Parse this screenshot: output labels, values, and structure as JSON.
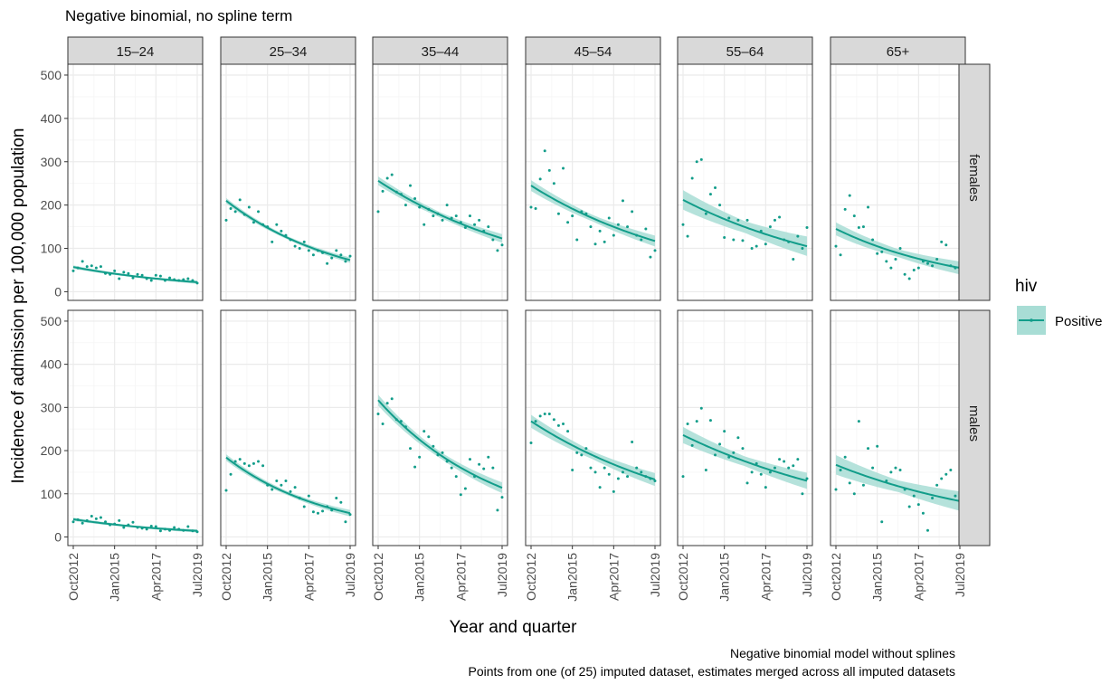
{
  "chart_data": {
    "type": "scatter",
    "title": "Negative binomial, no spline term",
    "xlabel": "Year and quarter",
    "ylabel": "Incidence of admission per 100,000 population",
    "caption": [
      "Negative binomial model without splines",
      "Points from one (of 25) imputed dataset, estimates merged across all imputed datasets"
    ],
    "x_quarters": [
      "Oct2012",
      "Jan2013",
      "Apr2013",
      "Jul2013",
      "Oct2013",
      "Jan2014",
      "Apr2014",
      "Jul2014",
      "Oct2014",
      "Jan2015",
      "Apr2015",
      "Jul2015",
      "Oct2015",
      "Jan2016",
      "Apr2016",
      "Jul2016",
      "Oct2016",
      "Jan2017",
      "Apr2017",
      "Jul2017",
      "Oct2017",
      "Jan2018",
      "Apr2018",
      "Jul2018",
      "Oct2018",
      "Jan2019",
      "Apr2019",
      "Jul2019"
    ],
    "x_ticks": [
      "Oct2012",
      "Jan2015",
      "Apr2017",
      "Jul2019"
    ],
    "y_ticks": [
      0,
      100,
      200,
      300,
      400,
      500
    ],
    "ylim": [
      -20,
      525
    ],
    "grid": true,
    "age_groups": [
      "15–24",
      "25–34",
      "35–44",
      "45–54",
      "55–64",
      "65+"
    ],
    "sexes": [
      "females",
      "males"
    ],
    "legend": {
      "title": "hiv",
      "label": "Positive",
      "position": "right"
    },
    "colors": {
      "line": "#129d8a",
      "ribbon": "#a8ddd5",
      "strip": "#d9d9d9",
      "grid_major": "#ebebeb",
      "grid_minor": "#f5f5f5"
    },
    "series": [
      {
        "sex": "females",
        "age": "15–24",
        "fit_start": 57,
        "fit_end": 22,
        "ci": 3,
        "points": [
          48,
          55,
          70,
          58,
          60,
          55,
          58,
          42,
          40,
          48,
          30,
          45,
          42,
          32,
          40,
          38,
          30,
          26,
          38,
          36,
          26,
          32,
          28,
          26,
          28,
          30,
          26,
          20
        ]
      },
      {
        "sex": "females",
        "age": "25–34",
        "fit_start": 210,
        "fit_end": 73,
        "ci": 5,
        "points": [
          165,
          192,
          185,
          212,
          178,
          195,
          160,
          185,
          155,
          150,
          115,
          155,
          140,
          130,
          120,
          105,
          100,
          115,
          95,
          85,
          95,
          90,
          65,
          78,
          95,
          85,
          70,
          82
        ]
      },
      {
        "sex": "females",
        "age": "35–44",
        "fit_start": 256,
        "fit_end": 123,
        "ci": 8,
        "points": [
          185,
          232,
          262,
          270,
          230,
          225,
          200,
          245,
          215,
          195,
          155,
          190,
          175,
          180,
          165,
          200,
          170,
          175,
          160,
          148,
          175,
          155,
          165,
          140,
          150,
          120,
          95,
          108
        ]
      },
      {
        "sex": "females",
        "age": "45–54",
        "fit_start": 245,
        "fit_end": 117,
        "ci": 10,
        "points": [
          195,
          192,
          260,
          325,
          280,
          250,
          180,
          285,
          160,
          175,
          120,
          185,
          180,
          150,
          110,
          140,
          115,
          170,
          130,
          155,
          210,
          150,
          185,
          130,
          120,
          145,
          80,
          95
        ]
      },
      {
        "sex": "females",
        "age": "55–64",
        "fit_start": 212,
        "fit_end": 105,
        "ci": 18,
        "points": [
          155,
          128,
          262,
          300,
          305,
          180,
          225,
          240,
          200,
          125,
          170,
          120,
          165,
          118,
          165,
          100,
          105,
          140,
          110,
          150,
          165,
          172,
          120,
          115,
          75,
          128,
          100,
          148
        ]
      },
      {
        "sex": "females",
        "age": "65+",
        "fit_start": 145,
        "fit_end": 55,
        "ci": 12,
        "points": [
          105,
          85,
          190,
          222,
          175,
          148,
          150,
          195,
          120,
          88,
          92,
          70,
          55,
          75,
          100,
          40,
          30,
          50,
          55,
          70,
          65,
          60,
          75,
          115,
          108,
          60,
          55,
          50
        ]
      },
      {
        "sex": "males",
        "age": "15–24",
        "fit_start": 41,
        "fit_end": 14,
        "ci": 3,
        "points": [
          35,
          40,
          32,
          38,
          48,
          42,
          45,
          35,
          28,
          30,
          38,
          22,
          28,
          34,
          22,
          20,
          18,
          25,
          24,
          14,
          18,
          15,
          22,
          18,
          15,
          24,
          14,
          12
        ]
      },
      {
        "sex": "males",
        "age": "25–34",
        "fit_start": 184,
        "fit_end": 55,
        "ci": 6,
        "points": [
          108,
          145,
          175,
          180,
          170,
          165,
          170,
          175,
          165,
          120,
          110,
          130,
          120,
          130,
          105,
          115,
          90,
          70,
          95,
          58,
          55,
          60,
          70,
          62,
          90,
          80,
          35,
          52
        ]
      },
      {
        "sex": "males",
        "age": "35–44",
        "fit_start": 317,
        "fit_end": 114,
        "ci": 10,
        "points": [
          285,
          262,
          310,
          320,
          272,
          268,
          255,
          205,
          162,
          185,
          245,
          232,
          210,
          190,
          195,
          175,
          160,
          140,
          98,
          112,
          180,
          140,
          168,
          158,
          185,
          160,
          62,
          92
        ]
      },
      {
        "sex": "males",
        "age": "45–54",
        "fit_start": 268,
        "fit_end": 133,
        "ci": 12,
        "points": [
          218,
          268,
          280,
          285,
          285,
          272,
          258,
          262,
          245,
          155,
          195,
          190,
          205,
          160,
          150,
          115,
          160,
          145,
          105,
          135,
          150,
          140,
          220,
          160,
          150,
          140,
          135,
          130
        ]
      },
      {
        "sex": "males",
        "age": "55–64",
        "fit_start": 236,
        "fit_end": 130,
        "ci": 15,
        "points": [
          140,
          262,
          212,
          268,
          298,
          155,
          270,
          190,
          215,
          245,
          185,
          195,
          230,
          205,
          125,
          150,
          170,
          145,
          115,
          150,
          160,
          180,
          175,
          160,
          165,
          180,
          100,
          135
        ]
      },
      {
        "sex": "males",
        "age": "65+",
        "fit_start": 167,
        "fit_end": 83,
        "ci": 18,
        "points": [
          110,
          155,
          185,
          125,
          100,
          268,
          120,
          205,
          160,
          210,
          35,
          130,
          150,
          160,
          155,
          110,
          70,
          95,
          75,
          55,
          15,
          90,
          120,
          135,
          145,
          155,
          95,
          105
        ]
      }
    ]
  }
}
